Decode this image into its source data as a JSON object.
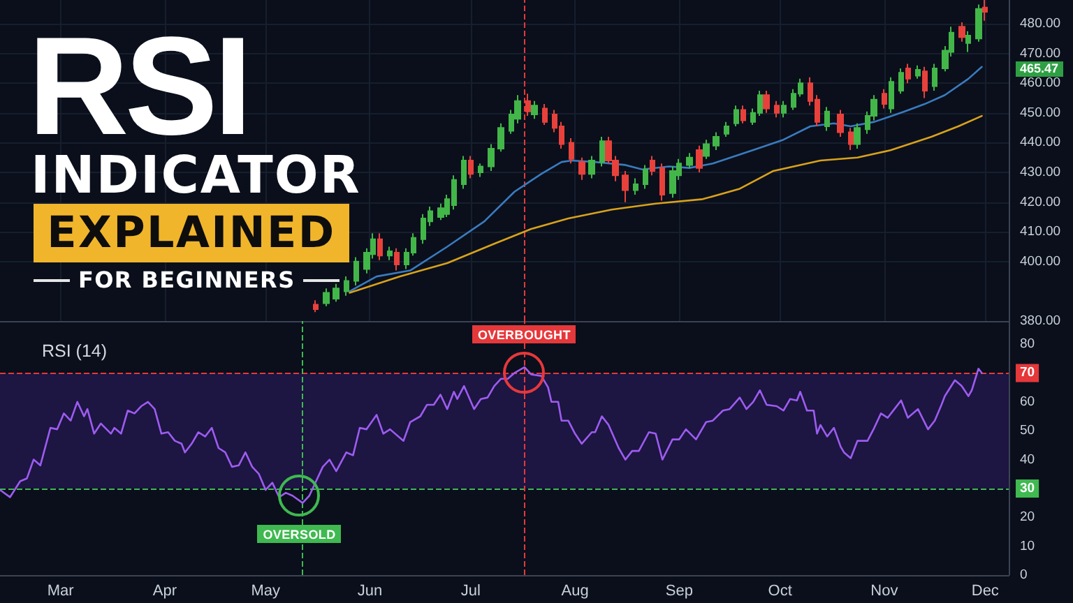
{
  "chart_data": [
    {
      "type": "candlestick",
      "title": "RSI INDICATOR EXPLAINED",
      "subtitle": "FOR BEGINNERS",
      "series": [
        {
          "x": [
            "--05-16",
            "--05-19",
            "--05-22",
            "--05-25",
            "--05-28",
            "--05-31",
            "--06-02",
            "--06-04",
            "--06-07",
            "--06-09",
            "--06-12",
            "--06-14",
            "--06-17",
            "--06-19",
            "--06-22",
            "--06-24",
            "--06-26",
            "--06-29",
            "--07-01",
            "--07-04",
            "--07-07",
            "--07-10",
            "--07-13",
            "--07-15",
            "--07-18",
            "--07-20",
            "--07-23",
            "--07-26",
            "--07-28",
            "--07-31",
            "--08-03",
            "--08-06",
            "--08-09",
            "--08-11",
            "--08-13",
            "--08-16",
            "--08-19",
            "--08-22",
            "--08-24",
            "--08-27",
            "--08-30",
            "--09-01",
            "--09-04",
            "--09-07",
            "--09-09",
            "--09-12",
            "--09-15",
            "--09-18",
            "--09-20",
            "--09-23",
            "--09-25",
            "--09-27",
            "--09-30",
            "--10-02",
            "--10-05",
            "--10-07",
            "--10-10",
            "--10-12",
            "--10-15",
            "--10-19",
            "--10-22",
            "--10-24",
            "--10-27",
            "--10-29",
            "--11-01",
            "--11-03",
            "--11-06",
            "--11-08",
            "--11-11",
            "--11-13",
            "--11-16",
            "--11-19",
            "--11-21",
            "--11-24",
            "--11-26",
            "--11-29",
            "--12-01"
          ],
          "ohlc": [
            [
              385.5,
              387,
              383,
              384
            ],
            [
              386,
              391,
              385,
              389.5
            ],
            [
              387.5,
              392.5,
              386.5,
              391
            ],
            [
              390,
              395,
              388.5,
              393.5
            ],
            [
              393.5,
              401.5,
              392,
              400
            ],
            [
              397.5,
              404.5,
              396,
              403
            ],
            [
              402.5,
              409.5,
              401,
              407.5
            ],
            [
              407.5,
              409.5,
              400.5,
              402
            ],
            [
              402,
              405,
              400.5,
              403.5
            ],
            [
              403,
              404.5,
              397,
              399
            ],
            [
              399,
              404.5,
              397.5,
              403
            ],
            [
              403,
              409.5,
              402,
              408
            ],
            [
              407.5,
              416,
              406,
              414.5
            ],
            [
              413.5,
              418.5,
              412,
              417
            ],
            [
              415,
              419.5,
              414,
              418
            ],
            [
              416,
              422.5,
              415,
              421
            ],
            [
              419,
              429,
              417.5,
              427.5
            ],
            [
              426,
              435.5,
              424.5,
              434
            ],
            [
              434,
              435.5,
              428,
              429.5
            ],
            [
              430,
              433,
              428.5,
              432
            ],
            [
              432,
              439.5,
              430.5,
              438
            ],
            [
              438,
              446.5,
              437,
              445
            ],
            [
              444,
              451,
              443,
              449.5
            ],
            [
              448,
              456,
              446.5,
              454
            ],
            [
              454,
              456.5,
              449,
              450.5
            ],
            [
              449.5,
              454,
              448,
              452.5
            ],
            [
              451.5,
              453,
              446,
              447
            ],
            [
              449.5,
              451,
              443.5,
              445
            ],
            [
              445.5,
              447,
              438,
              439.5
            ],
            [
              440,
              441.5,
              433,
              434.5
            ],
            [
              433.5,
              435,
              427.5,
              429.5
            ],
            [
              429.5,
              435.5,
              428,
              434
            ],
            [
              433.5,
              442,
              432,
              440.5
            ],
            [
              440.5,
              442,
              433,
              434
            ],
            [
              434,
              435.5,
              427,
              429
            ],
            [
              429,
              430.5,
              420,
              424
            ],
            [
              424,
              428,
              422.5,
              426
            ],
            [
              426,
              432.5,
              424.5,
              431
            ],
            [
              434,
              435.5,
              429,
              430.5
            ],
            [
              431.5,
              433,
              420.5,
              422.5
            ],
            [
              423,
              432,
              421.5,
              430.5
            ],
            [
              429,
              434.5,
              427.5,
              433
            ],
            [
              432.5,
              436.5,
              431.5,
              435
            ],
            [
              437.5,
              439,
              430,
              431.5
            ],
            [
              435.5,
              441,
              434.5,
              439.5
            ],
            [
              439,
              443.5,
              437.5,
              442
            ],
            [
              443,
              447,
              442,
              445.5
            ],
            [
              446.5,
              452.5,
              445.5,
              451
            ],
            [
              451,
              452.5,
              446.5,
              447.5
            ],
            [
              447,
              451.5,
              446,
              450
            ],
            [
              450,
              457.5,
              449,
              456
            ],
            [
              456,
              457.5,
              450,
              451.5
            ],
            [
              452.5,
              454,
              448.5,
              450
            ],
            [
              450,
              454,
              448.5,
              452.5
            ],
            [
              452,
              458,
              451,
              456.5
            ],
            [
              456.5,
              461.5,
              455.5,
              460
            ],
            [
              460,
              462,
              452.5,
              454
            ],
            [
              454.5,
              456,
              445.5,
              447
            ],
            [
              445.5,
              452,
              444,
              450.5
            ],
            [
              449.5,
              451,
              442,
              443.5
            ],
            [
              443.5,
              445,
              437.5,
              439.5
            ],
            [
              439.5,
              446.5,
              438,
              445
            ],
            [
              444.5,
              450.5,
              443,
              449
            ],
            [
              449,
              456,
              447.5,
              454.5
            ],
            [
              456.5,
              458,
              451.5,
              453
            ],
            [
              451.5,
              462,
              450,
              460.5
            ],
            [
              457.5,
              465,
              456.5,
              463.5
            ],
            [
              465,
              466.5,
              460,
              461.5
            ],
            [
              462.5,
              466,
              461.5,
              464.5
            ],
            [
              464,
              465.5,
              455,
              457.5
            ],
            [
              459,
              466.5,
              457.5,
              465
            ],
            [
              465,
              472.5,
              464,
              471
            ],
            [
              470.5,
              479,
              469,
              477
            ],
            [
              479,
              480.5,
              474,
              475.5
            ],
            [
              473.5,
              477.5,
              470.5,
              476
            ],
            [
              475,
              486.5,
              474,
              485
            ],
            [
              485.5,
              488,
              481,
              484
            ]
          ],
          "colors": [
            "#e8413c",
            "#43b649",
            "#43b649",
            "#43b649",
            "#43b649",
            "#43b649",
            "#43b649",
            "#e8413c",
            "#43b649",
            "#e8413c",
            "#43b649",
            "#43b649",
            "#43b649",
            "#43b649",
            "#43b649",
            "#43b649",
            "#43b649",
            "#43b649",
            "#e8413c",
            "#43b649",
            "#43b649",
            "#43b649",
            "#43b649",
            "#43b649",
            "#e8413c",
            "#43b649",
            "#e8413c",
            "#e8413c",
            "#e8413c",
            "#e8413c",
            "#e8413c",
            "#43b649",
            "#43b649",
            "#e8413c",
            "#e8413c",
            "#e8413c",
            "#43b649",
            "#43b649",
            "#e8413c",
            "#e8413c",
            "#43b649",
            "#43b649",
            "#43b649",
            "#e8413c",
            "#43b649",
            "#43b649",
            "#43b649",
            "#43b649",
            "#e8413c",
            "#43b649",
            "#43b649",
            "#e8413c",
            "#e8413c",
            "#43b649",
            "#43b649",
            "#43b649",
            "#e8413c",
            "#e8413c",
            "#43b649",
            "#e8413c",
            "#e8413c",
            "#43b649",
            "#43b649",
            "#43b649",
            "#e8413c",
            "#43b649",
            "#43b649",
            "#e8413c",
            "#43b649",
            "#e8413c",
            "#43b649",
            "#43b649",
            "#43b649",
            "#e8413c",
            "#43b649",
            "#43b649",
            "#e8413c"
          ]
        },
        {
          "type": "line",
          "color": "#3a7bbf",
          "x": [
            "--05-26",
            "--06-03",
            "--06-13",
            "--06-24",
            "--07-05",
            "--07-14",
            "--07-22",
            "--07-28",
            "--07-31",
            "--08-07",
            "--08-16",
            "--08-21",
            "--08-29",
            "--09-04",
            "--09-11",
            "--09-23",
            "--10-02",
            "--10-10",
            "--10-17",
            "--10-22",
            "--10-29",
            "--11-07",
            "--11-13",
            "--11-19",
            "--11-26",
            "--11-30"
          ],
          "values": [
            390,
            395,
            397,
            405,
            413.5,
            423.5,
            429.5,
            433.5,
            434,
            433.5,
            432.5,
            431,
            432,
            431.5,
            433,
            437.5,
            441,
            445.5,
            446.5,
            445.5,
            447,
            450.5,
            453,
            456,
            461.5,
            465.5
          ]
        },
        {
          "type": "line",
          "color": "#d9a21b",
          "x": [
            "--05-26",
            "--06-10",
            "--06-24",
            "--07-08",
            "--07-19",
            "--07-30",
            "--08-12",
            "--08-25",
            "--09-08",
            "--09-19",
            "--09-29",
            "--10-13",
            "--10-24",
            "--11-03",
            "--11-15",
            "--11-23",
            "--11-30"
          ],
          "values": [
            389.5,
            395,
            399.5,
            406,
            411,
            414.5,
            417.5,
            419.5,
            421,
            424.5,
            430.5,
            434,
            435,
            437.5,
            442,
            445.5,
            449
          ]
        }
      ],
      "xlim": [
        "--02-11",
        "--12-08"
      ],
      "xticks": [
        {
          "value": "--03-01",
          "label": null
        },
        {
          "value": "--04-01",
          "label": null
        },
        {
          "value": "--05-01",
          "label": null
        },
        {
          "value": "--06-01",
          "label": null
        },
        {
          "value": "--07-01",
          "label": null
        },
        {
          "value": "--08-01",
          "label": null
        },
        {
          "value": "--09-01",
          "label": null
        },
        {
          "value": "--10-01",
          "label": null
        },
        {
          "value": "--11-01",
          "label": null
        },
        {
          "value": "--12-01",
          "label": null
        }
      ],
      "ylim": [
        380,
        488
      ],
      "yticks": [
        {
          "value": 380,
          "label": "380.00"
        },
        {
          "value": 400,
          "label": "400.00"
        },
        {
          "value": 410,
          "label": "410.00"
        },
        {
          "value": 420,
          "label": "420.00"
        },
        {
          "value": 430,
          "label": "430.00"
        },
        {
          "value": 440,
          "label": "440.00"
        },
        {
          "value": 450,
          "label": "450.00"
        },
        {
          "value": 460,
          "label": "460.00"
        },
        {
          "value": 470,
          "label": "470.00"
        },
        {
          "value": 480,
          "label": "480.00"
        }
      ],
      "tick_labels": "y",
      "grid": true,
      "marker": "none",
      "ref_lines": [
        {
          "axis": "x",
          "value": "--07-17",
          "color": "#e5383b",
          "line_style": "dashed"
        }
      ],
      "annotations": [
        "465.47"
      ]
    },
    {
      "type": "line",
      "title": "RSI (14)",
      "series": [
        {
          "color": "#9d5cf0",
          "x": [
            "--02-11",
            "--02-14",
            "--02-17",
            "--02-19",
            "--02-21",
            "--02-23",
            "--02-26",
            "--02-28",
            "--03-02",
            "--03-04",
            "--03-06",
            "--03-08",
            "--03-09",
            "--03-11",
            "--03-13",
            "--03-16",
            "--03-17",
            "--03-19",
            "--03-21",
            "--03-23",
            "--03-25",
            "--03-27",
            "--03-29",
            "--03-31",
            "--04-02",
            "--04-04",
            "--04-06",
            "--04-07",
            "--04-09",
            "--04-11",
            "--04-13",
            "--04-15",
            "--04-17",
            "--04-19",
            "--04-21",
            "--04-23",
            "--04-25",
            "--04-27",
            "--04-29",
            "--05-01",
            "--05-03",
            "--05-05",
            "--05-07",
            "--05-09",
            "--05-12",
            "--05-14",
            "--05-16",
            "--05-18",
            "--05-20",
            "--05-22",
            "--05-25",
            "--05-27",
            "--05-29",
            "--05-31",
            "--06-03",
            "--06-05",
            "--06-07",
            "--06-11",
            "--06-13",
            "--06-16",
            "--06-18",
            "--06-20",
            "--06-22",
            "--06-24",
            "--06-26",
            "--06-27",
            "--06-29",
            "--07-02",
            "--07-04",
            "--07-06",
            "--07-08",
            "--07-10",
            "--07-12",
            "--07-14",
            "--07-17",
            "--07-19",
            "--07-22",
            "--07-24",
            "--07-25",
            "--07-27",
            "--07-28",
            "--07-30",
            "--08-01",
            "--08-03",
            "--08-06",
            "--08-07",
            "--08-09",
            "--08-11",
            "--08-14",
            "--08-16",
            "--08-18",
            "--08-20",
            "--08-23",
            "--08-25",
            "--08-27",
            "--08-30",
            "--09-01",
            "--09-03",
            "--09-06",
            "--09-09",
            "--09-11",
            "--09-14",
            "--09-16",
            "--09-19",
            "--09-21",
            "--09-23",
            "--09-25",
            "--09-27",
            "--09-30",
            "--10-02",
            "--10-04",
            "--10-06",
            "--10-07",
            "--10-09",
            "--10-11",
            "--10-12",
            "--10-13",
            "--10-15",
            "--10-17",
            "--10-19",
            "--10-20",
            "--10-22",
            "--10-24",
            "--10-27",
            "--10-29",
            "--10-31",
            "--11-02",
            "--11-04",
            "--11-06",
            "--11-08",
            "--11-11",
            "--11-14",
            "--11-16",
            "--11-18",
            "--11-19",
            "--11-22",
            "--11-24",
            "--11-26",
            "--11-27",
            "--11-29",
            "--11-30"
          ],
          "values": [
            29.5,
            27,
            32.5,
            33.5,
            40,
            38,
            51,
            50.5,
            56,
            53.5,
            60,
            55,
            57.5,
            49,
            52.5,
            49,
            51,
            49,
            57,
            56,
            58.5,
            60,
            57.5,
            49,
            49.5,
            46.5,
            45.5,
            42.5,
            45.5,
            49.5,
            48,
            51,
            44,
            42.5,
            37.5,
            38,
            42.5,
            37.5,
            35,
            29.5,
            32,
            27,
            28.5,
            27.5,
            25,
            27.5,
            32.5,
            37.5,
            40,
            36,
            42.5,
            41.5,
            51,
            50.5,
            55.5,
            49,
            50.5,
            46.5,
            53,
            55,
            59,
            59,
            62.5,
            57.5,
            63.5,
            61,
            65.5,
            57.5,
            61,
            61.5,
            65.5,
            68,
            68,
            70,
            72,
            69.5,
            69,
            65,
            60,
            60,
            53.5,
            53.5,
            49,
            45.5,
            49.5,
            49.5,
            55,
            52,
            44,
            40,
            43,
            43,
            49.5,
            49,
            40,
            47,
            47,
            50.5,
            47,
            53,
            53.5,
            57,
            57.5,
            61.5,
            57.5,
            60,
            64,
            59,
            58.5,
            57,
            61,
            60.5,
            63.5,
            57,
            57,
            49,
            52,
            48,
            51,
            44.5,
            42.5,
            40.5,
            46.5,
            46.5,
            51,
            56,
            54.5,
            57.5,
            60.5,
            54.5,
            57.5,
            50.5,
            53.5,
            59,
            62,
            67.5,
            65.5,
            62,
            64,
            71.5,
            70
          ]
        }
      ],
      "xlim": [
        "--02-11",
        "--12-08"
      ],
      "xticks": [
        {
          "value": "--03-01",
          "label": "Mar"
        },
        {
          "value": "--04-01",
          "label": "Apr"
        },
        {
          "value": "--05-01",
          "label": "May"
        },
        {
          "value": "--06-01",
          "label": "Jun"
        },
        {
          "value": "--07-01",
          "label": "Jul"
        },
        {
          "value": "--08-01",
          "label": "Aug"
        },
        {
          "value": "--09-01",
          "label": "Sep"
        },
        {
          "value": "--10-01",
          "label": "Oct"
        },
        {
          "value": "--11-01",
          "label": "Nov"
        },
        {
          "value": "--12-01",
          "label": "Dec"
        }
      ],
      "ylim": [
        0,
        88
      ],
      "yticks": [
        0,
        10,
        20,
        40,
        50,
        60,
        80
      ],
      "marker": "none",
      "ref_lines": [
        {
          "axis": "y",
          "value": 70,
          "label": "70",
          "color": "#e5383b",
          "line_style": "dashed"
        },
        {
          "axis": "y",
          "value": 30,
          "label": "30",
          "color": "#3fb950",
          "line_style": "dashed"
        },
        {
          "axis": "x",
          "value": "--05-12",
          "color": "#3fb950",
          "line_style": "dashed"
        },
        {
          "axis": "x",
          "value": "--07-17",
          "color": "#e5383b",
          "line_style": "dashed"
        }
      ],
      "bands": [
        {
          "axis": "y",
          "from": 30,
          "to": 70,
          "color": "#1d1542"
        }
      ],
      "annotations": [
        {
          "text": "OVERBOUGHT",
          "x": "--07-17",
          "y": 70
        },
        {
          "text": "OVERSOLD",
          "x": "--05-11",
          "y": 27.5
        }
      ]
    }
  ]
}
